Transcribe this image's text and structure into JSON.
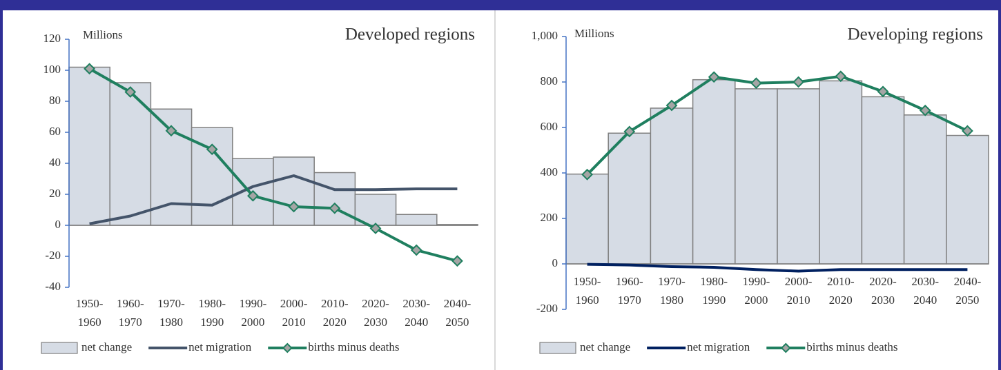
{
  "chart_data": [
    {
      "type": "bar-line",
      "title": "Developed regions",
      "y_label": "Millions",
      "categories": [
        "1950-1960",
        "1960-1970",
        "1970-1980",
        "1980-1990",
        "1990-2000",
        "2000-2010",
        "2010-2020",
        "2020-2030",
        "2030-2040",
        "2040-2050"
      ],
      "series": [
        {
          "name": "net change",
          "type": "bar",
          "color": "#d6dce5",
          "values": [
            102,
            92,
            75,
            63,
            43,
            44,
            34,
            20,
            7,
            0.5
          ]
        },
        {
          "name": "net migration",
          "type": "line",
          "color": "#44546a",
          "values": [
            1,
            6,
            14,
            13,
            25,
            32,
            23,
            23,
            23.5,
            23.5
          ]
        },
        {
          "name": "births minus deaths",
          "type": "line-marker",
          "color": "#1f7f5f",
          "values": [
            101,
            86,
            61,
            49,
            19,
            12,
            11,
            -2,
            -16,
            -23
          ]
        }
      ],
      "ylim": [
        -40,
        120
      ],
      "yticks": [
        -40,
        -20,
        0,
        20,
        40,
        60,
        80,
        100,
        120
      ]
    },
    {
      "type": "bar-line",
      "title": "Developing regions",
      "y_label": "Millions",
      "categories": [
        "1950-1960",
        "1960-1970",
        "1970-1980",
        "1980-1990",
        "1990-2000",
        "2000-2010",
        "2010-2020",
        "2020-2030",
        "2030-2040",
        "2040-2050"
      ],
      "series": [
        {
          "name": "net change",
          "type": "bar",
          "color": "#d6dce5",
          "values": [
            395,
            575,
            685,
            810,
            770,
            770,
            805,
            735,
            655,
            565
          ]
        },
        {
          "name": "net migration",
          "type": "line",
          "color": "#002060",
          "values": [
            -2,
            -5,
            -12,
            -15,
            -25,
            -32,
            -25,
            -25,
            -25,
            -25
          ]
        },
        {
          "name": "births minus deaths",
          "type": "line-marker",
          "color": "#1f7f5f",
          "values": [
            393,
            582,
            697,
            822,
            795,
            800,
            825,
            758,
            675,
            585
          ]
        }
      ],
      "ylim": [
        -200,
        1000
      ],
      "yticks": [
        -200,
        0,
        200,
        400,
        600,
        800,
        {
          "value": 1000,
          "label": "1,000"
        }
      ]
    }
  ]
}
